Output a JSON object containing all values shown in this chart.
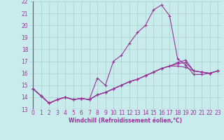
{
  "xlabel": "Windchill (Refroidissement éolien,°C)",
  "background_color": "#c8ecec",
  "grid_color": "#aacccc",
  "line_color": "#993399",
  "xlim": [
    -0.5,
    23.5
  ],
  "ylim": [
    13,
    22
  ],
  "xticks": [
    0,
    1,
    2,
    3,
    4,
    5,
    6,
    7,
    8,
    9,
    10,
    11,
    12,
    13,
    14,
    15,
    16,
    17,
    18,
    19,
    20,
    21,
    22,
    23
  ],
  "yticks": [
    13,
    14,
    15,
    16,
    17,
    18,
    19,
    20,
    21,
    22
  ],
  "series": [
    [
      14.7,
      14.1,
      13.5,
      13.8,
      14.0,
      13.8,
      13.9,
      13.8,
      15.6,
      15.0,
      17.0,
      17.5,
      18.5,
      19.4,
      20.0,
      21.3,
      21.7,
      20.8,
      17.2,
      16.7,
      15.9,
      15.9,
      16.0,
      16.2
    ],
    [
      14.7,
      14.1,
      13.5,
      13.8,
      14.0,
      13.8,
      13.9,
      13.8,
      14.2,
      14.4,
      14.7,
      15.0,
      15.3,
      15.5,
      15.8,
      16.1,
      16.4,
      16.6,
      16.6,
      16.5,
      16.2,
      16.1,
      16.0,
      16.2
    ],
    [
      14.7,
      14.1,
      13.5,
      13.8,
      14.0,
      13.8,
      13.9,
      13.8,
      14.2,
      14.4,
      14.7,
      15.0,
      15.3,
      15.5,
      15.8,
      16.1,
      16.4,
      16.6,
      16.8,
      16.9,
      16.2,
      16.1,
      16.0,
      16.2
    ],
    [
      14.7,
      14.1,
      13.5,
      13.8,
      14.0,
      13.8,
      13.9,
      13.8,
      14.2,
      14.4,
      14.7,
      15.0,
      15.3,
      15.5,
      15.8,
      16.1,
      16.4,
      16.6,
      16.9,
      17.1,
      16.2,
      16.1,
      16.0,
      16.2
    ]
  ],
  "xlabel_fontsize": 5.5,
  "tick_fontsize": 5.5,
  "marker": "+",
  "markersize": 3,
  "linewidth": 0.8
}
